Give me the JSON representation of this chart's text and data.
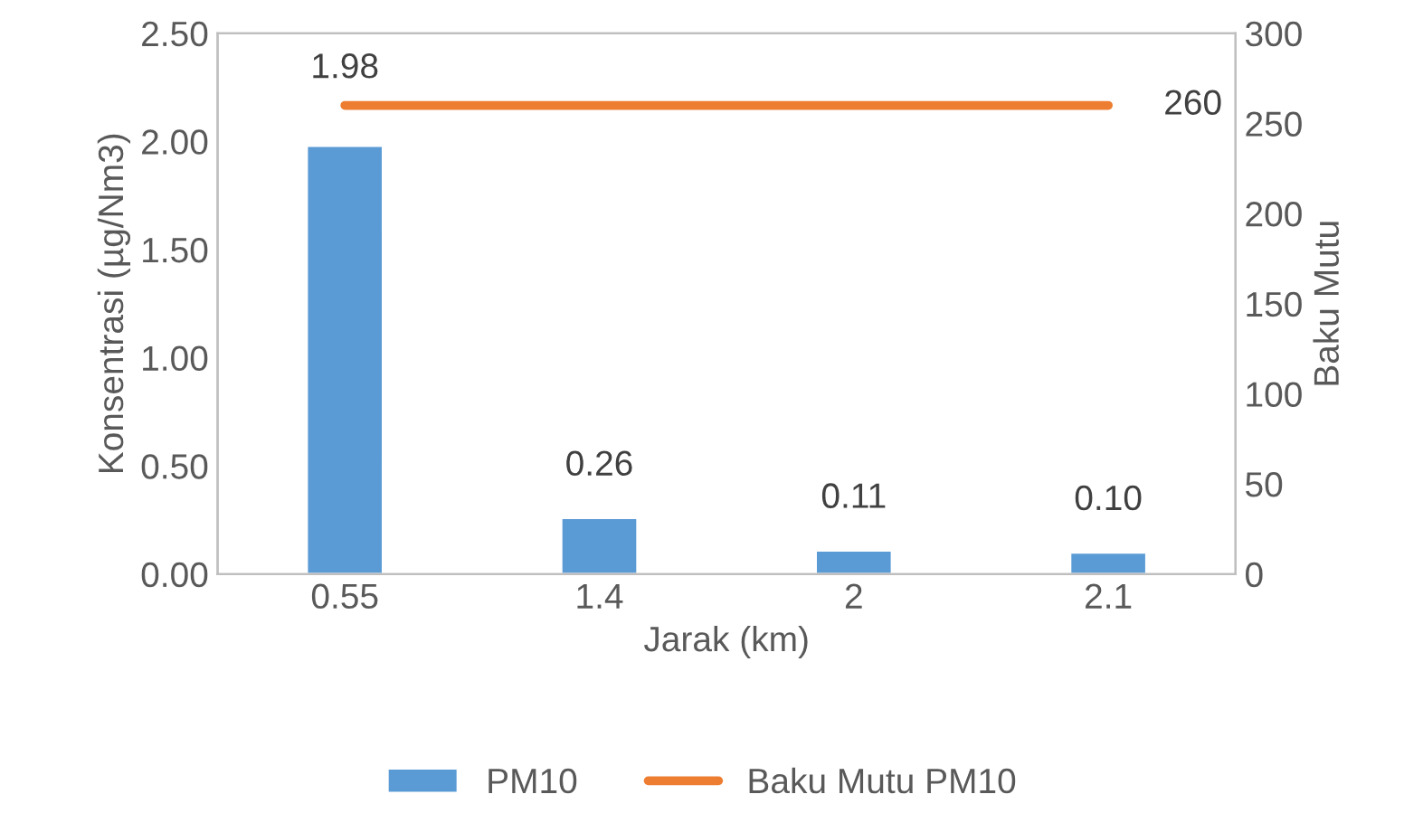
{
  "chart_data": {
    "type": "bar",
    "xlabel": "Jarak (km)",
    "ylabel": "Konsentrasi (µg/Nm3)",
    "y2label": "Baku Mutu",
    "categories": [
      "0.55",
      "1.4",
      "2",
      "2.1"
    ],
    "series": [
      {
        "name": "PM10",
        "color": "#5b9bd5",
        "values": [
          1.98,
          0.26,
          0.11,
          0.1
        ],
        "value_labels": [
          "1.98",
          "0.26",
          "0.11",
          "0.10"
        ]
      },
      {
        "name": "Baku Mutu PM10",
        "type": "line",
        "axis": "y2",
        "color": "#ed7d31",
        "values": [
          260,
          260,
          260,
          260
        ],
        "value_labels": [
          null,
          null,
          null,
          "260"
        ]
      }
    ],
    "ylim": [
      0,
      2.5
    ],
    "yticks": [
      {
        "value": 0,
        "label": "0.00"
      },
      {
        "value": 0.5,
        "label": "0.50"
      },
      {
        "value": 1,
        "label": "1.00"
      },
      {
        "value": 1.5,
        "label": "1.50"
      },
      {
        "value": 2,
        "label": "2.00"
      },
      {
        "value": 2.5,
        "label": "2.50"
      }
    ],
    "y2lim": [
      0,
      300
    ],
    "y2ticks": [
      0,
      50,
      100,
      150,
      200,
      250,
      300
    ],
    "legend": "bottom",
    "grid": false,
    "marker": "none",
    "line_style": "solid"
  }
}
